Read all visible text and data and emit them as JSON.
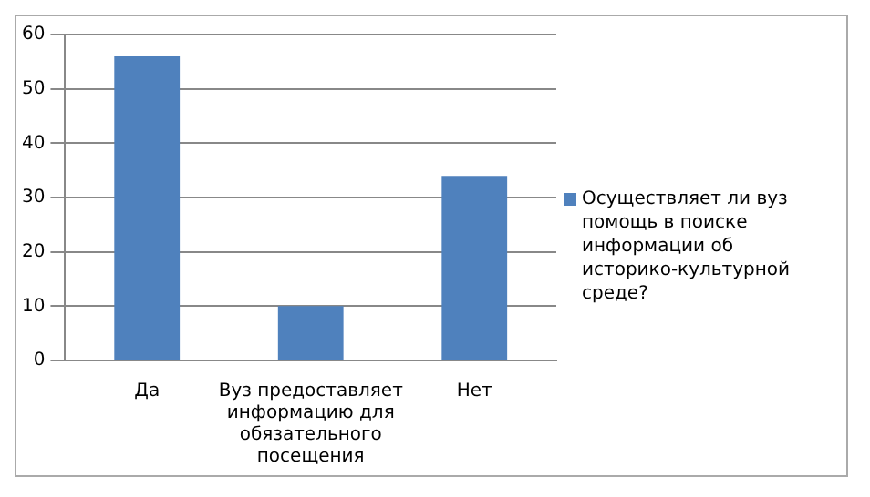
{
  "chart_data": {
    "type": "bar",
    "categories": [
      "Да",
      "Вуз предоставляет информацию для обязательного посещения",
      "Нет"
    ],
    "series": [
      {
        "name": "Осуществляет ли вуз помощь в поиске информации об историко-культурной среде?",
        "color": "#4f81bd",
        "values": [
          56,
          10,
          34
        ]
      }
    ],
    "ylim": [
      0,
      60
    ],
    "yticks": [
      0,
      10,
      20,
      30,
      40,
      50,
      60
    ],
    "grid": "y",
    "legend": "right"
  }
}
